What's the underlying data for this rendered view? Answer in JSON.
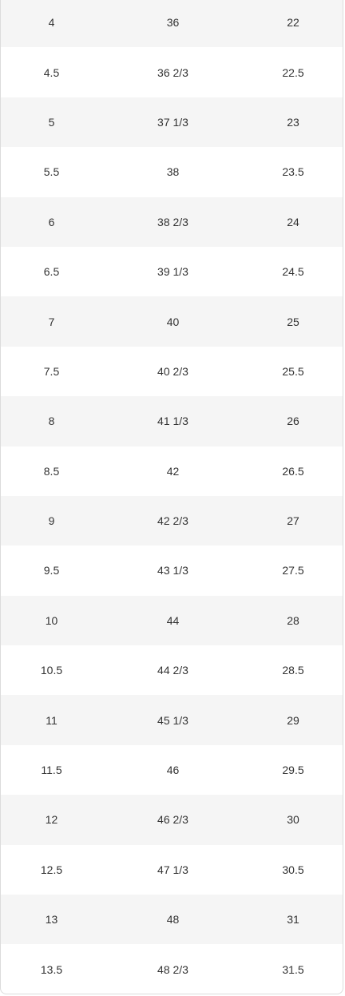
{
  "size_table": {
    "rows": [
      [
        "4",
        "36",
        "22"
      ],
      [
        "4.5",
        "36 2/3",
        "22.5"
      ],
      [
        "5",
        "37 1/3",
        "23"
      ],
      [
        "5.5",
        "38",
        "23.5"
      ],
      [
        "6",
        "38 2/3",
        "24"
      ],
      [
        "6.5",
        "39 1/3",
        "24.5"
      ],
      [
        "7",
        "40",
        "25"
      ],
      [
        "7.5",
        "40 2/3",
        "25.5"
      ],
      [
        "8",
        "41 1/3",
        "26"
      ],
      [
        "8.5",
        "42",
        "26.5"
      ],
      [
        "9",
        "42 2/3",
        "27"
      ],
      [
        "9.5",
        "43 1/3",
        "27.5"
      ],
      [
        "10",
        "44",
        "28"
      ],
      [
        "10.5",
        "44 2/3",
        "28.5"
      ],
      [
        "11",
        "45 1/3",
        "29"
      ],
      [
        "11.5",
        "46",
        "29.5"
      ],
      [
        "12",
        "46 2/3",
        "30"
      ],
      [
        "12.5",
        "47 1/3",
        "30.5"
      ],
      [
        "13",
        "48",
        "31"
      ],
      [
        "13.5",
        "48 2/3",
        "31.5"
      ]
    ],
    "colors": {
      "shaded_row": "#f5f5f5",
      "plain_row": "#ffffff",
      "border": "#dcdcdc",
      "text": "#333333"
    }
  }
}
